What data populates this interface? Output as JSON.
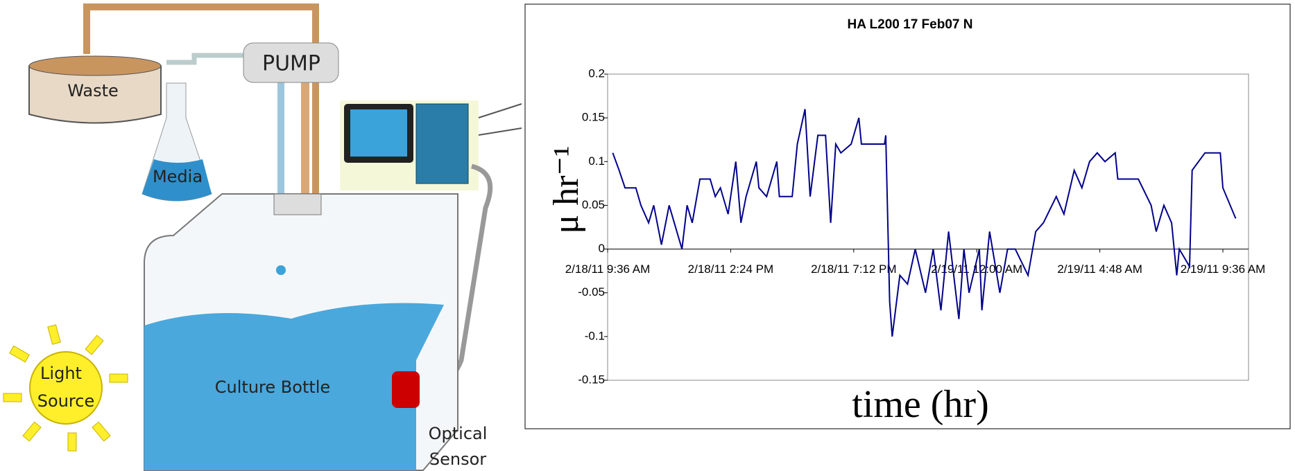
{
  "diagram": {
    "waste": "Waste",
    "pump": "PUMP",
    "media": "Media",
    "culture_bottle": "Culture Bottle",
    "light_source": [
      "Light",
      "Source"
    ],
    "optical_sensor": [
      "Optical",
      "Sensor"
    ]
  },
  "chart_data": {
    "type": "line",
    "title": "HA L200 17 Feb07 N",
    "x_label": "time (hr)",
    "y_label": "μ hr⁻¹",
    "color": "#00008b",
    "x": [
      0.2,
      0.45,
      0.68,
      1.1,
      1.3,
      1.6,
      1.8,
      2.1,
      2.4,
      2.6,
      2.9,
      3.1,
      3.3,
      3.6,
      4.0,
      4.2,
      4.4,
      4.7,
      5.0,
      5.2,
      5.4,
      5.8,
      5.9,
      6.2,
      6.6,
      6.7,
      7.2,
      7.4,
      7.7,
      7.9,
      8.2,
      8.5,
      8.7,
      8.9,
      9.1,
      9.5,
      9.8,
      9.9,
      10.8,
      10.85,
      11.0,
      11.1,
      11.4,
      11.7,
      12.0,
      12.4,
      12.7,
      13.0,
      13.3,
      13.7,
      13.9,
      14.1,
      14.5,
      14.6,
      14.9,
      15.3,
      15.6,
      15.9,
      16.4,
      16.7,
      17.0,
      17.5,
      17.8,
      18.2,
      18.5,
      18.8,
      19.1,
      19.4,
      19.8,
      19.9,
      20.6,
      20.7,
      21.2,
      21.4,
      21.7,
      22.0,
      22.2,
      22.3,
      22.7,
      22.8,
      23.3,
      23.9,
      24.0,
      24.5
    ],
    "values": [
      0.11,
      0.09,
      0.07,
      0.07,
      0.05,
      0.03,
      0.05,
      0.005,
      0.05,
      0.03,
      0.0,
      0.05,
      0.03,
      0.08,
      0.08,
      0.06,
      0.07,
      0.04,
      0.1,
      0.03,
      0.06,
      0.1,
      0.07,
      0.06,
      0.1,
      0.06,
      0.06,
      0.12,
      0.16,
      0.06,
      0.13,
      0.13,
      0.03,
      0.12,
      0.11,
      0.12,
      0.15,
      0.12,
      0.12,
      0.13,
      -0.06,
      -0.1,
      -0.03,
      -0.04,
      0.0,
      -0.05,
      0.0,
      -0.07,
      0.02,
      -0.08,
      0.0,
      -0.05,
      0.0,
      -0.07,
      0.02,
      -0.05,
      0.0,
      0.0,
      -0.03,
      0.02,
      0.03,
      0.06,
      0.04,
      0.09,
      0.07,
      0.1,
      0.11,
      0.1,
      0.11,
      0.08,
      0.08,
      0.08,
      0.05,
      0.02,
      0.05,
      0.03,
      -0.03,
      0.0,
      -0.02,
      0.09,
      0.11,
      0.11,
      0.07,
      0.035
    ],
    "xlim": [
      0,
      25
    ],
    "xticks": [
      {
        "value": 0,
        "label": "2/18/11 9:36 AM"
      },
      {
        "value": 4.8,
        "label": "2/18/11 2:24 PM"
      },
      {
        "value": 9.6,
        "label": "2/18/11 7:12 PM"
      },
      {
        "value": 14.4,
        "label": "2/19/11 12:00 AM"
      },
      {
        "value": 19.2,
        "label": "2/19/11 4:48 AM"
      },
      {
        "value": 24,
        "label": "2/19/11 9:36 AM"
      }
    ],
    "ylim": [
      -0.15,
      0.2
    ],
    "yticks": [
      0.2,
      0.15,
      0.1,
      0.05,
      0,
      -0.05,
      -0.1,
      -0.15
    ]
  }
}
